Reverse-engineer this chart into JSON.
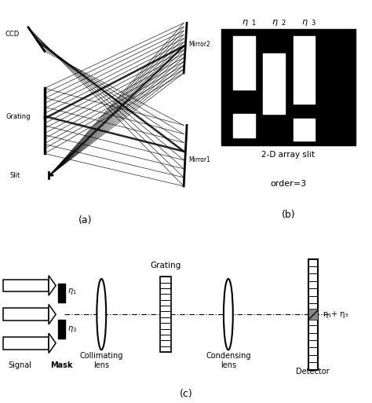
{
  "fig_width": 4.74,
  "fig_height": 5.13,
  "dpi": 100,
  "bg_color": "#ffffff",
  "panel_a_label": "(a)",
  "panel_b_label": "(b)",
  "panel_c_label": "(c)",
  "label_ccd": "CCD",
  "label_grating": "Grating",
  "label_slit": "Slit",
  "label_mirror1": "Mirror1",
  "label_mirror2": "Mirror2",
  "label_2d": "2-D array slit",
  "label_order": "order=3",
  "label_signal": "Signal",
  "label_mask": "Mask",
  "label_collimating": "Collimating\nlens",
  "label_grating_c": "Grating",
  "label_condensing": "Condensing\nlens",
  "label_detector": "Detector",
  "label_eta1": "η₁",
  "label_eta3": "η₃",
  "label_eta13": "η₁+ η₃"
}
